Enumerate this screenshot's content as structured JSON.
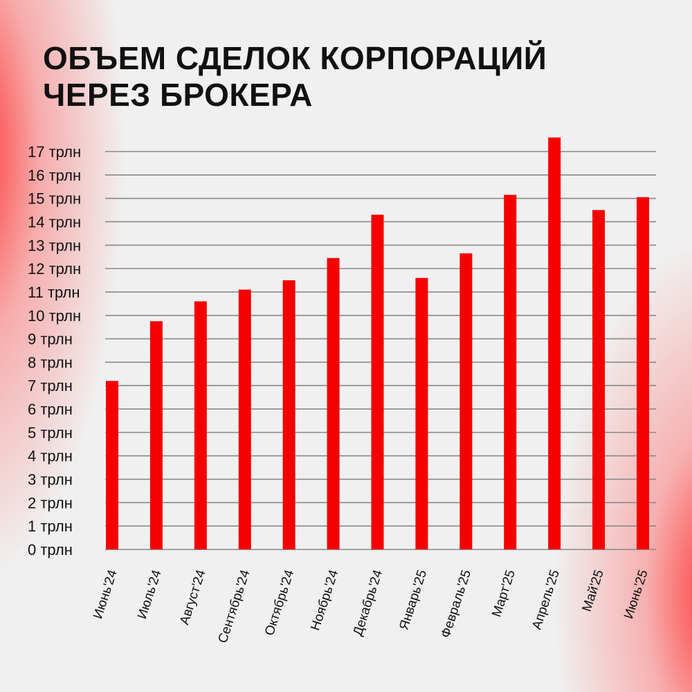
{
  "header": {
    "title_line1": "ОБЪЕМ СДЕЛОК КОРПОРАЦИЙ",
    "title_line2": "ЧЕРЕЗ БРОКЕРА"
  },
  "colors": {
    "bar": "#f50000",
    "grid": "#888888",
    "text": "#111111"
  },
  "chart_data": {
    "type": "bar",
    "title": "ОБЪЕМ СДЕЛОК КОРПОРАЦИЙ ЧЕРЕЗ БРОКЕРА",
    "categories": [
      "Июнь'24",
      "Июль'24",
      "Август'24",
      "Сентябрь'24",
      "Октябрь'24",
      "Ноябрь'24",
      "Декабрь'24",
      "Январь'25",
      "Февраль'25",
      "Март'25",
      "Апрель'25",
      "Май'25",
      "Июнь'25"
    ],
    "values": [
      7.2,
      9.75,
      10.6,
      11.1,
      11.5,
      12.45,
      14.3,
      11.6,
      12.65,
      15.15,
      17.6,
      14.5,
      15.05
    ],
    "ylim": [
      0,
      17
    ],
    "y_ticks": [
      "0 трлн",
      "1 трлн",
      "2 трлн",
      "3 трлн",
      "4 трлн",
      "5 трлн",
      "6 трлн",
      "7 трлн",
      "8 трлн",
      "9 трлн",
      "10 трлн",
      "11 трлн",
      "12 трлн",
      "13 трлн",
      "14 трлн",
      "15 трлн",
      "16 трлн",
      "17 трлн"
    ],
    "grid": true,
    "xlabel": "",
    "ylabel": ""
  }
}
